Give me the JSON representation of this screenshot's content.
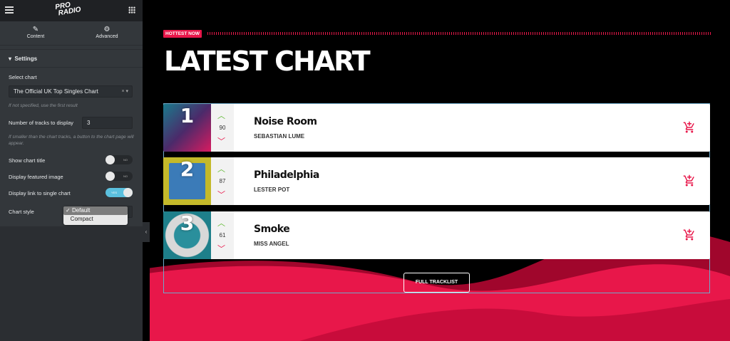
{
  "editor": {
    "logo": "PRO RADIO",
    "tabs": [
      {
        "label": "Content",
        "icon": "pencil-icon"
      },
      {
        "label": "Advanced",
        "icon": "gear-icon"
      }
    ],
    "section": "Settings",
    "select_chart": {
      "label": "Select chart",
      "value": "The Official UK Top Singles Chart",
      "hint": "If not specified, use the first result"
    },
    "num_tracks": {
      "label": "Number of tracks to display",
      "value": "3",
      "hint": "If smaller than the chart tracks, a button to the chart page will appear."
    },
    "toggles": [
      {
        "label": "Show chart title",
        "state": "NO",
        "on": false
      },
      {
        "label": "Display featured image",
        "state": "NO",
        "on": false
      },
      {
        "label": "Display link to single chart",
        "state": "YES",
        "on": true
      }
    ],
    "chart_style": {
      "label": "Chart style",
      "options": [
        "Default",
        "Compact"
      ],
      "selected": "Default",
      "check": "✓"
    }
  },
  "page": {
    "badge": "HOTTEST NOW",
    "title": "LATEST CHART",
    "accent": "#e8174a",
    "tracks": [
      {
        "position": "1",
        "votes": "90",
        "title": "Noise Room",
        "artist": "SEBASTIAN LUME"
      },
      {
        "position": "2",
        "votes": "87",
        "title": "Philadelphia",
        "artist": "LESTER POT"
      },
      {
        "position": "3",
        "votes": "61",
        "title": "Smoke",
        "artist": "MISS ANGEL"
      }
    ],
    "button": "FULL TRACKLIST"
  }
}
